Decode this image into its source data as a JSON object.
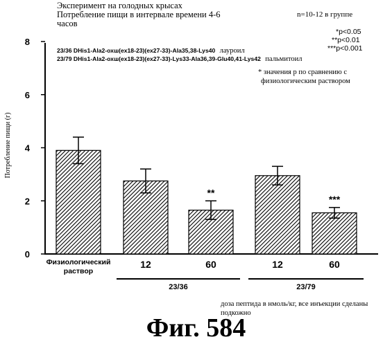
{
  "header": {
    "title_line1": "Эксперимент на голодных крысах",
    "title_line2": "Потребление пищи в интервале времени 4-6",
    "title_line3": "часов",
    "group_size": "n=10-12 в группе"
  },
  "significance_legend": [
    "*p<0.05",
    "**p<0.01",
    "***p<0.001"
  ],
  "compounds": [
    {
      "code": "23/36 DHis1-Ala2-охш(ex18-23)(ex27-33)-Ala35,38-Lys40",
      "modifier": "лауроил"
    },
    {
      "code": "23/79 DHis1-Ala2-охш(ex18-23)(ex27-33)-Lys33-Ala36,39-Glu40,41-Lys42",
      "modifier": "пальмитоил"
    }
  ],
  "comparison_note_line1": "* значения р по сравнению с",
  "comparison_note_line2": "физиологическим раствором",
  "footnote_line1": "доза пептида в нмоль/кг, все инъекции сделаны",
  "footnote_line2": "подкожно",
  "figure_caption": "Фиг.  584",
  "colors": {
    "ink": "#000000",
    "bar_fill": "#ffffff",
    "hatch": "#000000"
  },
  "chart_data": {
    "type": "bar",
    "title": "",
    "xlabel": "",
    "ylabel": "Потребление пищи (г)",
    "ylim": [
      0,
      8
    ],
    "yticks": [
      0,
      2,
      4,
      6,
      8
    ],
    "grid": false,
    "categories": [
      "Физиологический раствор",
      "12",
      "60",
      "12",
      "60"
    ],
    "category_lines": [
      [
        "Физиологический",
        "раствор"
      ],
      [
        "12"
      ],
      [
        "60"
      ],
      [
        "12"
      ],
      [
        "60"
      ]
    ],
    "values": [
      3.9,
      2.75,
      1.65,
      2.95,
      1.55
    ],
    "error": [
      0.5,
      0.45,
      0.35,
      0.35,
      0.2
    ],
    "significance": [
      "",
      "",
      "**",
      "",
      "***"
    ],
    "group_labels": [
      {
        "label": "23/36",
        "indices": [
          1,
          2
        ]
      },
      {
        "label": "23/79",
        "indices": [
          3,
          4
        ]
      }
    ]
  }
}
